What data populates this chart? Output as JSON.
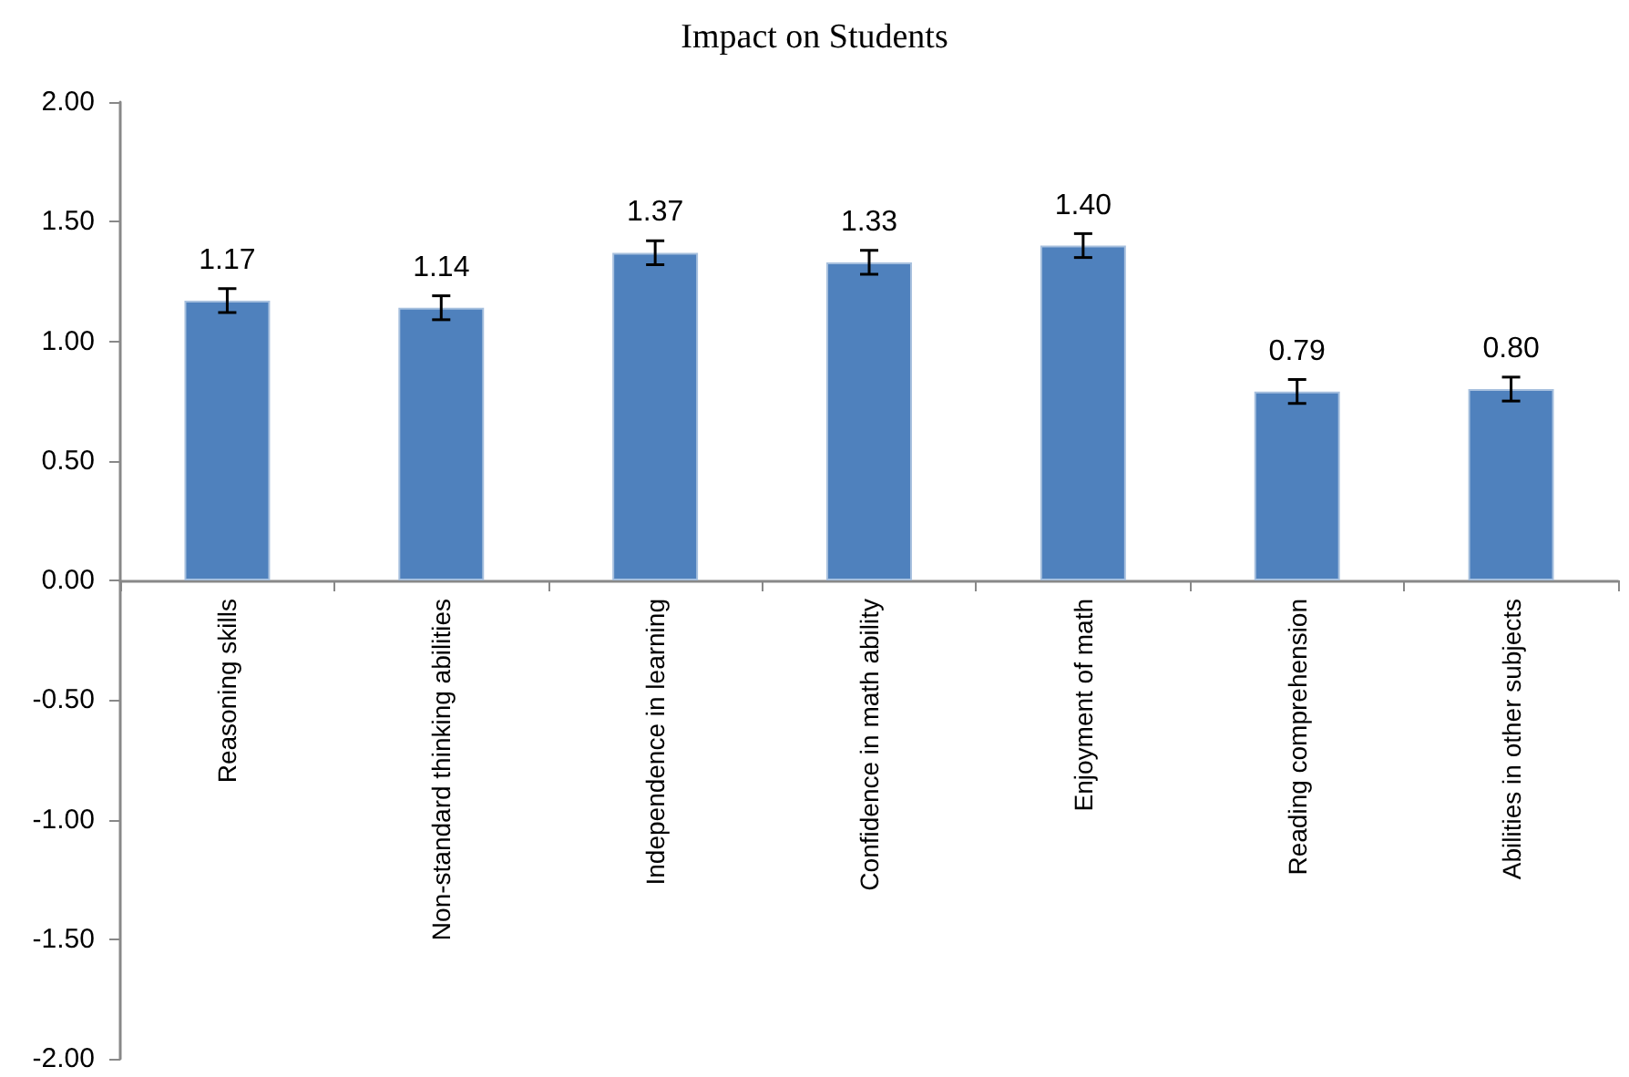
{
  "chart_data": {
    "type": "bar",
    "title": "Impact on Students",
    "categories": [
      "Reasoning skills",
      "Non-standard thinking abilities",
      "Independence in learning",
      "Confidence in math ability",
      "Enjoyment of math",
      "Reading comprehension",
      "Abilities in other subjects"
    ],
    "values": [
      1.17,
      1.14,
      1.37,
      1.33,
      1.4,
      0.79,
      0.8
    ],
    "value_labels": [
      "1.17",
      "1.14",
      "1.37",
      "1.33",
      "1.40",
      "0.79",
      "0.80"
    ],
    "errors": [
      0.05,
      0.05,
      0.05,
      0.05,
      0.05,
      0.05,
      0.05
    ],
    "color": "#4f81bd",
    "ylim": [
      -2,
      2
    ],
    "yticks": [
      {
        "value": -2,
        "label": "-2.00"
      },
      {
        "value": -1.5,
        "label": "-1.50"
      },
      {
        "value": -1,
        "label": "-1.00"
      },
      {
        "value": -0.5,
        "label": "-0.50"
      },
      {
        "value": 0,
        "label": "0.00"
      },
      {
        "value": 0.5,
        "label": "0.50"
      },
      {
        "value": 1,
        "label": "1.00"
      },
      {
        "value": 1.5,
        "label": "1.50"
      },
      {
        "value": 2,
        "label": "2.00"
      }
    ],
    "grid": false
  }
}
